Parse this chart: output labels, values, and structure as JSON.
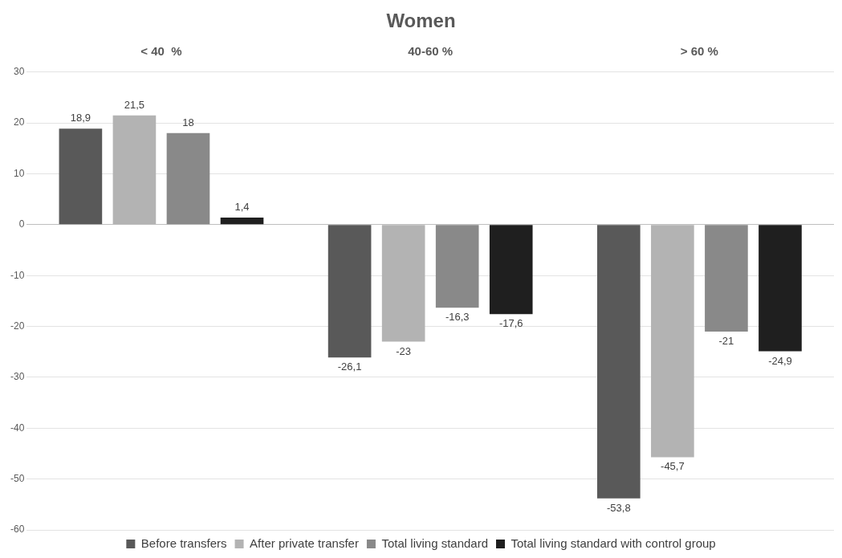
{
  "chart_data": {
    "type": "bar",
    "title": "Women",
    "categories": [
      "< 40  %",
      "40-60 %",
      "> 60 %"
    ],
    "series": [
      {
        "name": "Before transfers",
        "color": "#595959",
        "values": [
          18.9,
          -26.1,
          -53.8
        ],
        "value_labels": [
          "18,9",
          "-26,1",
          "-53,8"
        ]
      },
      {
        "name": "After private transfer",
        "color": "#b3b3b3",
        "values": [
          21.5,
          -23,
          -45.7
        ],
        "value_labels": [
          "21,5",
          "-23",
          "-45,7"
        ]
      },
      {
        "name": "Total living standard",
        "color": "#898989",
        "values": [
          18,
          -16.3,
          -21
        ],
        "value_labels": [
          "18",
          "-16,3",
          "-21"
        ]
      },
      {
        "name": "Total living standard with control group",
        "color": "#1f1f1f",
        "values": [
          1.4,
          -17.6,
          -24.9
        ],
        "value_labels": [
          "1,4",
          "-17,6",
          "-24,9"
        ]
      }
    ],
    "ylim": [
      -60,
      30
    ],
    "yticks": [
      -60,
      -50,
      -40,
      -30,
      -20,
      -10,
      0,
      10,
      20,
      30
    ],
    "grid": "y",
    "legend": "bottom"
  }
}
